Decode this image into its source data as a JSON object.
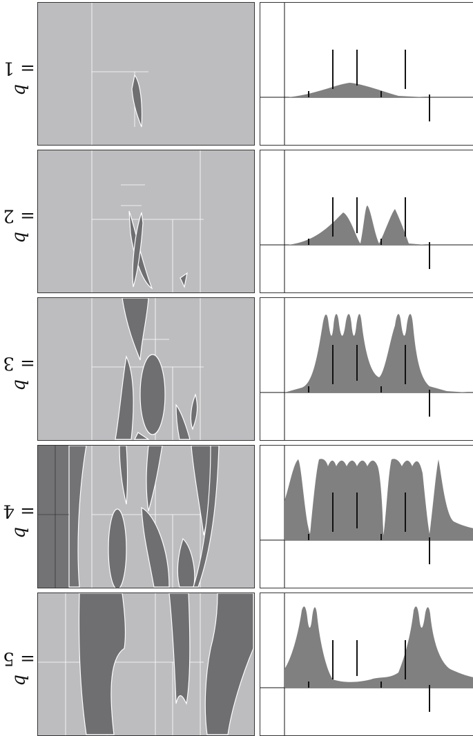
{
  "rows": [
    {
      "label_var": "q",
      "label_eq": " = 1"
    },
    {
      "label_var": "q",
      "label_eq": " = 2"
    },
    {
      "label_var": "q",
      "label_eq": " = 3"
    },
    {
      "label_var": "q",
      "label_eq": " = 4"
    },
    {
      "label_var": "q",
      "label_eq": " = 5"
    }
  ],
  "colors": {
    "region_fill": "#6f6f72",
    "background_fill": "#bdbdc0",
    "dark_background": "#737376",
    "curve_fill": "#808080",
    "grid_line": "#ffffff",
    "stick": "#111111"
  }
}
